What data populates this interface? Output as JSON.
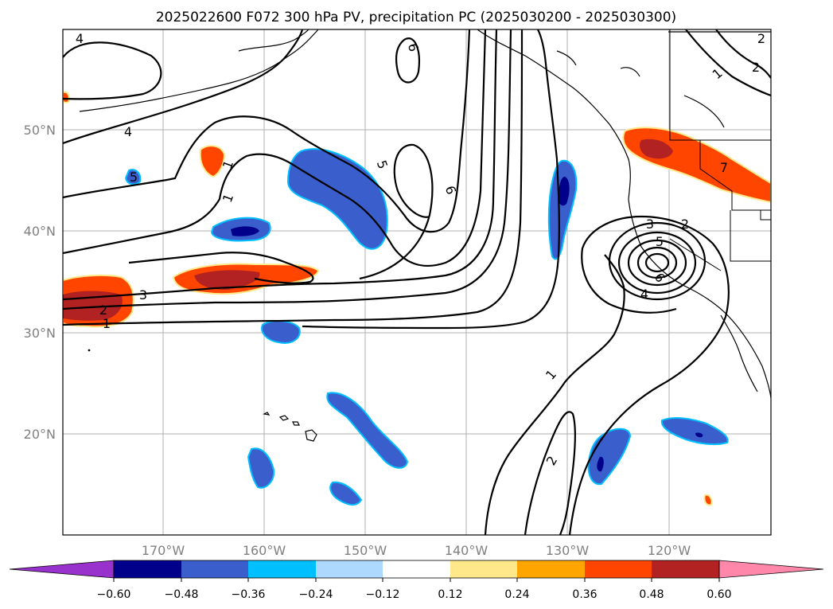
{
  "title": "2025022600 F072 300 hPa PV, precipitation PC (2025030200 - 2025030300)",
  "lat_labels": [
    "50°N",
    "40°N",
    "30°N",
    "20°N"
  ],
  "lon_labels": [
    "170°W",
    "160°W",
    "150°W",
    "140°W",
    "130°W",
    "120°W"
  ],
  "colorbar": {
    "ticks": [
      "−0.60",
      "−0.48",
      "−0.36",
      "−0.24",
      "−0.12",
      "0.12",
      "0.24",
      "0.36",
      "0.48",
      "0.60"
    ],
    "colors": [
      "#9932cc",
      "#00008b",
      "#3a5fcd",
      "#00bfff",
      "#add8ff",
      "#ffffff",
      "#ffe88a",
      "#ffa500",
      "#ff4500",
      "#b22222",
      "#ff88aa"
    ]
  },
  "contour_labels": [
    "4",
    "6",
    "4",
    "5",
    "5",
    "6",
    "1",
    "3",
    "2",
    "1",
    "1",
    "2",
    "3",
    "2",
    "5",
    "6",
    "4",
    "1",
    "2",
    "1",
    "2",
    "7"
  ],
  "colors": {
    "negative_outline": "#00bfff",
    "negative_fill": "#3a5fcd",
    "negative_core": "#00008b",
    "positive_outline": "#ffe88a",
    "positive_fill": "#ff4500",
    "positive_core": "#b22222"
  }
}
